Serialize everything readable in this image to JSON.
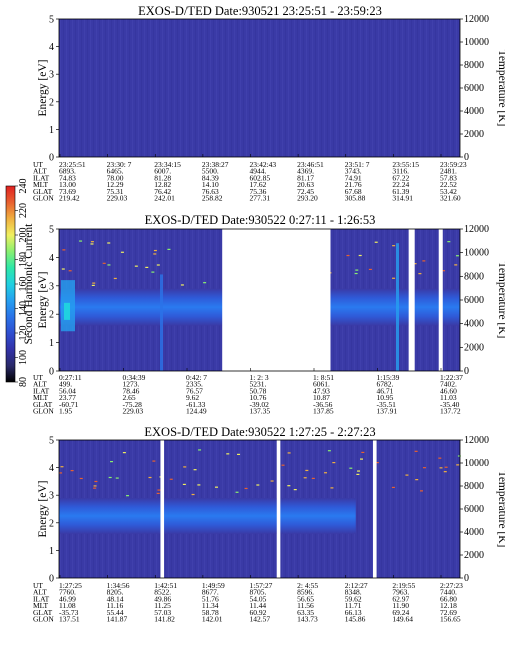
{
  "colors": {
    "background": "#3a3aa6",
    "colorbar": [
      "#000000",
      "#2a2a6a",
      "#3232a8",
      "#2f4fd0",
      "#2a73e8",
      "#25a0f0",
      "#20d0e0",
      "#2ee8a8",
      "#8af070",
      "#f0f060",
      "#f0b040",
      "#e86030",
      "#e02020"
    ]
  },
  "colorbar": {
    "label": "Second Harmonic Current",
    "ticks": [
      "80",
      "100",
      "120",
      "140",
      "160",
      "180",
      "200",
      "220",
      "240"
    ]
  },
  "chart_data": [
    {
      "type": "heatmap",
      "title": "EXOS-D/TED   Date:930521  23:25:51 - 23:59:23",
      "ylabel": "Energy [eV]",
      "y2label": "Temperature [K]",
      "ylim": [
        0,
        5
      ],
      "y2lim": [
        0,
        12000
      ],
      "yticks": [
        "0",
        "1",
        "2",
        "3",
        "4",
        "5"
      ],
      "y2ticks": [
        "0",
        "2000",
        "4000",
        "6000",
        "8000",
        "10000",
        "12000"
      ],
      "gaps": [],
      "table": {
        "row_labels": [
          "UT",
          "ALT",
          "ILAT",
          "MLT",
          "GLAT",
          "GLON"
        ],
        "columns": [
          [
            "23:25:51",
            "6893.",
            "74.83",
            "13.00",
            "73.69",
            "219.42"
          ],
          [
            "23:30: 7",
            "6465.",
            "78.00",
            "12.29",
            "75.31",
            "229.03"
          ],
          [
            "23:34:15",
            "6007.",
            "81.28",
            "12.82",
            "76.42",
            "242.01"
          ],
          [
            "23:38:27",
            "5500.",
            "84.39",
            "14.10",
            "76.63",
            "258.82"
          ],
          [
            "23:42:43",
            "4944.",
            "602.85",
            "17.62",
            "75.36",
            "277.31"
          ],
          [
            "23:46:51",
            "4369.",
            "81.17",
            "20.63",
            "72.45",
            "293.20"
          ],
          [
            "23:51: 7",
            "3743.",
            "74.91",
            "21.76",
            "67.68",
            "305.88"
          ],
          [
            "23:55:15",
            "3116.",
            "67.22",
            "22.24",
            "61.39",
            "314.91"
          ],
          [
            "23:59:23",
            "2481.",
            "57.83",
            "22.52",
            "53.42",
            "321.60"
          ]
        ]
      }
    },
    {
      "type": "heatmap",
      "title": "EXOS-D/TED   Date:930522  0:27:11 - 1:26:53",
      "ylabel": "Energy [eV]",
      "y2label": "Temperature [K]",
      "ylim": [
        0,
        5
      ],
      "y2lim": [
        0,
        12000
      ],
      "yticks": [
        "0",
        "1",
        "2",
        "3",
        "4",
        "5"
      ],
      "y2ticks": [
        "0",
        "2000",
        "4000",
        "6000",
        "8000",
        "10000",
        "12000"
      ],
      "gaps": [
        [
          0.407,
          0.677
        ],
        [
          0.872,
          0.887
        ],
        [
          0.947,
          0.957
        ]
      ],
      "table": {
        "row_labels": [
          "UT",
          "ALT",
          "ILAT",
          "MLT",
          "GLAT",
          "GLON"
        ],
        "columns": [
          [
            "0:27:11",
            "499.",
            "56.04",
            "23.77",
            "-60.71",
            "1.95"
          ],
          [
            "0:34:39",
            "1273.",
            "78.46",
            "2.65",
            "-75.28",
            "229.03"
          ],
          [
            "0:42: 7",
            "2335.",
            "76.57",
            "9.62",
            "-61.33",
            "124.49"
          ],
          [
            "1: 2: 3",
            "5231.",
            "50.78",
            "10.76",
            "-39.02",
            "137.35"
          ],
          [
            "1: 8:51",
            "6061.",
            "47.93",
            "10.87",
            "-36.56",
            "137.85"
          ],
          [
            "1:15:39",
            "6782.",
            "46.71",
            "10.95",
            "-35.51",
            "137.91"
          ],
          [
            "1:22:37",
            "7402.",
            "46.60",
            "11.03",
            "-35.40",
            "137.72"
          ]
        ]
      }
    },
    {
      "type": "heatmap",
      "title": "EXOS-D/TED   Date:930522  1:27:25 - 2:27:23",
      "ylabel": "Energy [eV]",
      "y2label": "Temperature [K]",
      "ylim": [
        0,
        5
      ],
      "y2lim": [
        0,
        12000
      ],
      "yticks": [
        "0",
        "1",
        "2",
        "3",
        "4",
        "5"
      ],
      "y2ticks": [
        "0",
        "2000",
        "4000",
        "6000",
        "8000",
        "10000",
        "12000"
      ],
      "gaps": [
        [
          0.253,
          0.262
        ],
        [
          0.543,
          0.552
        ],
        [
          0.783,
          0.792
        ]
      ],
      "table": {
        "row_labels": [
          "UT",
          "ALT",
          "ILAT",
          "MLT",
          "GLAT",
          "GLON"
        ],
        "columns": [
          [
            "1:27:25",
            "7760.",
            "46.99",
            "11.08",
            "-35.73",
            "137.51"
          ],
          [
            "1:34:56",
            "8205.",
            "48.14",
            "11.16",
            "55.44",
            "141.87"
          ],
          [
            "1:42:51",
            "8522.",
            "49.86",
            "11.25",
            "57.03",
            "141.82"
          ],
          [
            "1:49:59",
            "8677.",
            "51.76",
            "11.34",
            "58.78",
            "142.01"
          ],
          [
            "1:57:27",
            "8705.",
            "54.05",
            "11.44",
            "60.92",
            "142.57"
          ],
          [
            "2: 4:55",
            "8596.",
            "56.65",
            "11.56",
            "63.35",
            "143.73"
          ],
          [
            "2:12:27",
            "8348.",
            "59.62",
            "11.71",
            "66.13",
            "145.86"
          ],
          [
            "2:19:55",
            "7963.",
            "62.97",
            "11.90",
            "69.24",
            "149.64"
          ],
          [
            "2:27:23",
            "7440.",
            "66.80",
            "12.18",
            "72.69",
            "156.65"
          ]
        ]
      }
    }
  ]
}
